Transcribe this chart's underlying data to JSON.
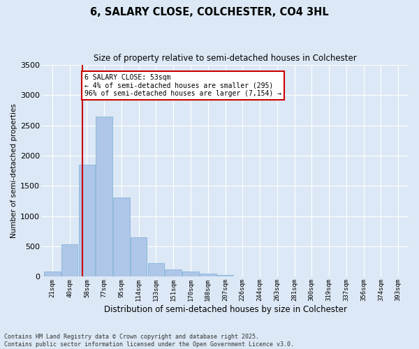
{
  "title": "6, SALARY CLOSE, COLCHESTER, CO4 3HL",
  "subtitle": "Size of property relative to semi-detached houses in Colchester",
  "xlabel": "Distribution of semi-detached houses by size in Colchester",
  "ylabel": "Number of semi-detached properties",
  "footer_line1": "Contains HM Land Registry data © Crown copyright and database right 2025.",
  "footer_line2": "Contains public sector information licensed under the Open Government Licence v3.0.",
  "annotation_title": "6 SALARY CLOSE: 53sqm",
  "annotation_line2": "← 4% of semi-detached houses are smaller (295)",
  "annotation_line3": "96% of semi-detached houses are larger (7,154) →",
  "bar_color": "#aec6e8",
  "bar_edge_color": "#7aafd4",
  "background_color": "#dce8f5",
  "grid_color": "#ffffff",
  "vline_color": "#cc0000",
  "categories": [
    "21sqm",
    "40sqm",
    "58sqm",
    "77sqm",
    "95sqm",
    "114sqm",
    "133sqm",
    "151sqm",
    "170sqm",
    "188sqm",
    "207sqm",
    "226sqm",
    "244sqm",
    "263sqm",
    "281sqm",
    "300sqm",
    "319sqm",
    "337sqm",
    "356sqm",
    "374sqm",
    "393sqm"
  ],
  "values": [
    80,
    530,
    1850,
    2650,
    1310,
    650,
    220,
    120,
    80,
    55,
    30,
    10,
    5,
    3,
    2,
    1,
    1,
    0,
    0,
    0,
    0
  ],
  "ylim": [
    0,
    3500
  ],
  "yticks": [
    0,
    500,
    1000,
    1500,
    2000,
    2500,
    3000,
    3500
  ]
}
